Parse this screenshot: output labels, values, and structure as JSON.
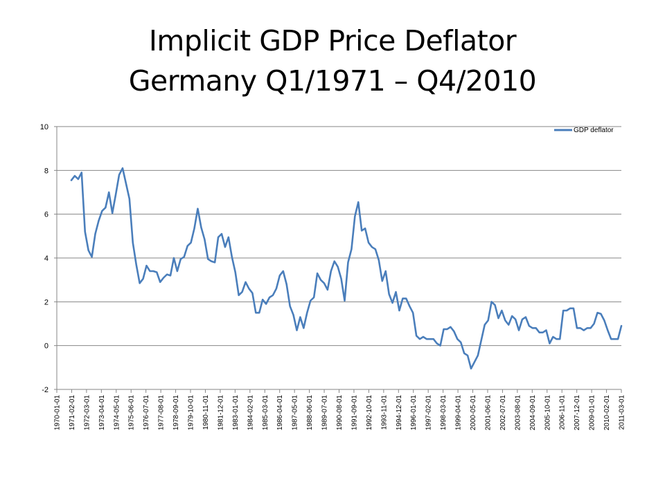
{
  "chart_data": {
    "type": "line",
    "title": "Implicit GDP Price Deflator",
    "subtitle": "Germany Q1/1971 – Q4/2010",
    "xlabel": "",
    "ylabel": "",
    "ylim": [
      -2,
      10
    ],
    "yticks": [
      "10",
      "8",
      "6",
      "4",
      "2",
      "0",
      "-2"
    ],
    "ytick_values": [
      10,
      8,
      6,
      4,
      2,
      0,
      -2
    ],
    "grid": true,
    "legend_position": "top-right",
    "line_color": "#4a7ebb",
    "x_tick_labels": [
      "1970-01-01",
      "1971-02-01",
      "1972-03-01",
      "1973-04-01",
      "1974-05-01",
      "1975-06-01",
      "1976-07-01",
      "1977-08-01",
      "1978-09-01",
      "1979-10-01",
      "1980-11-01",
      "1981-12-01",
      "1983-01-01",
      "1984-02-01",
      "1985-03-01",
      "1986-04-01",
      "1987-05-01",
      "1988-06-01",
      "1989-07-01",
      "1990-08-01",
      "1991-09-01",
      "1992-10-01",
      "1993-11-01",
      "1994-12-01",
      "1996-01-01",
      "1997-02-01",
      "1998-03-01",
      "1999-04-01",
      "2000-05-01",
      "2001-06-01",
      "2002-07-01",
      "2003-08-01",
      "2004-09-01",
      "2005-10-01",
      "2006-11-01",
      "2007-12-01",
      "2009-01-01",
      "2010-02-01",
      "2011-03-01"
    ],
    "x_start": "1971-Q1",
    "x_end": "2010-Q4",
    "series": [
      {
        "name": "GDP deflator",
        "values": [
          7.55,
          7.75,
          7.6,
          7.9,
          5.2,
          4.35,
          4.05,
          5.1,
          5.7,
          6.15,
          6.3,
          7.0,
          6.05,
          6.9,
          7.8,
          8.1,
          7.4,
          6.7,
          4.7,
          3.7,
          2.85,
          3.05,
          3.65,
          3.4,
          3.4,
          3.35,
          2.9,
          3.1,
          3.25,
          3.2,
          4.0,
          3.4,
          3.95,
          4.05,
          4.55,
          4.7,
          5.35,
          6.25,
          5.4,
          4.85,
          3.95,
          3.85,
          3.8,
          4.95,
          5.1,
          4.5,
          4.95,
          4.05,
          3.35,
          2.3,
          2.45,
          2.9,
          2.6,
          2.4,
          1.5,
          1.5,
          2.1,
          1.9,
          2.2,
          2.3,
          2.6,
          3.2,
          3.4,
          2.8,
          1.8,
          1.4,
          0.7,
          1.3,
          0.8,
          1.5,
          2.05,
          2.2,
          3.3,
          3.0,
          2.85,
          2.55,
          3.4,
          3.85,
          3.6,
          3.05,
          2.05,
          3.8,
          4.4,
          5.9,
          6.55,
          5.25,
          5.35,
          4.7,
          4.5,
          4.4,
          3.9,
          2.95,
          3.4,
          2.35,
          1.95,
          2.45,
          1.6,
          2.15,
          2.15,
          1.8,
          1.5,
          0.45,
          0.3,
          0.4,
          0.3,
          0.3,
          0.3,
          0.1,
          0.0,
          0.75,
          0.75,
          0.85,
          0.65,
          0.3,
          0.15,
          -0.35,
          -0.45,
          -1.05,
          -0.75,
          -0.45,
          0.25,
          0.95,
          1.15,
          2.0,
          1.85,
          1.25,
          1.6,
          1.15,
          0.95,
          1.35,
          1.2,
          0.7,
          1.2,
          1.3,
          0.9,
          0.8,
          0.8,
          0.6,
          0.6,
          0.7,
          0.1,
          0.4,
          0.3,
          0.3,
          1.6,
          1.6,
          1.7,
          1.7,
          0.8,
          0.8,
          0.7,
          0.8,
          0.8,
          1.0,
          1.5,
          1.45,
          1.15,
          0.7,
          0.3,
          0.3,
          0.3,
          0.9
        ]
      }
    ]
  }
}
